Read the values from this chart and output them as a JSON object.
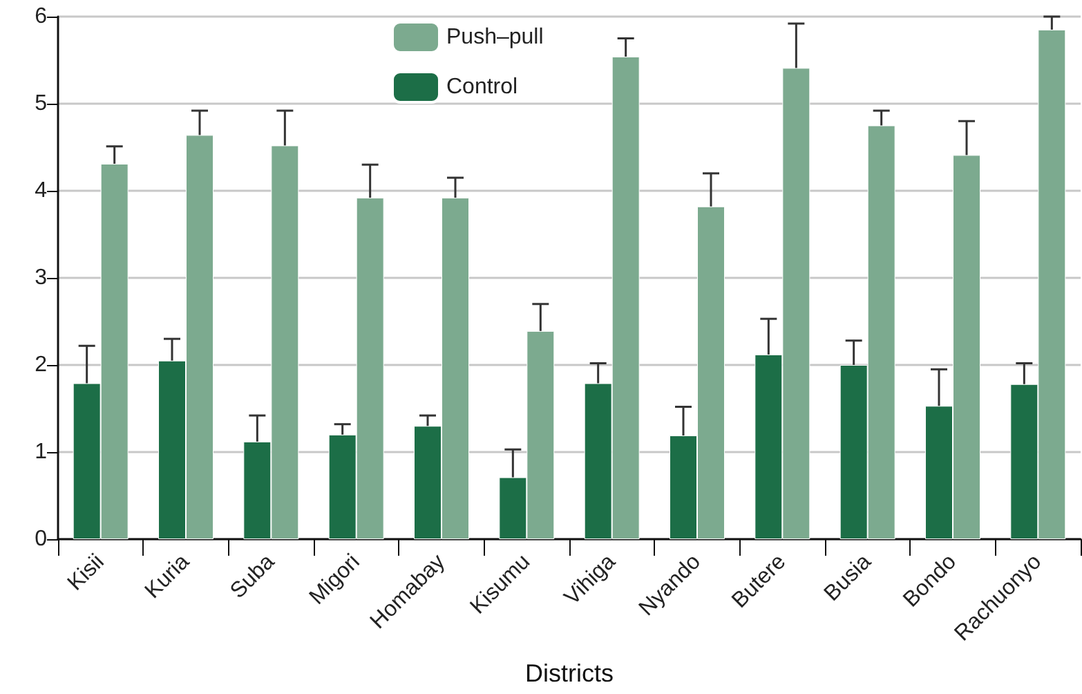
{
  "chart_data": {
    "type": "bar",
    "xlabel": "Districts",
    "categories": [
      "Kisii",
      "Kuria",
      "Suba",
      "Migori",
      "Homabay",
      "Kisumu",
      "Vihiga",
      "Nyando",
      "Butere",
      "Busia",
      "Bondo",
      "Rachuonyo"
    ],
    "series": [
      {
        "name": "Control",
        "color": "#1c6e47",
        "values": [
          1.79,
          2.05,
          1.12,
          1.2,
          1.3,
          0.71,
          1.79,
          1.19,
          2.12,
          2.0,
          1.53,
          1.78
        ],
        "errors": [
          0.43,
          0.25,
          0.3,
          0.12,
          0.12,
          0.32,
          0.23,
          0.33,
          0.41,
          0.28,
          0.42,
          0.24
        ]
      },
      {
        "name": "Push–pull",
        "color": "#7caa8f",
        "values": [
          4.31,
          4.64,
          4.52,
          3.92,
          3.92,
          2.39,
          5.54,
          3.82,
          5.41,
          4.75,
          4.41,
          5.85
        ],
        "errors": [
          0.2,
          0.28,
          0.4,
          0.38,
          0.23,
          0.31,
          0.21,
          0.38,
          0.51,
          0.17,
          0.39,
          0.15
        ]
      }
    ],
    "ylim": [
      0,
      6
    ],
    "yticks": [
      0,
      1,
      2,
      3,
      4,
      5,
      6
    ],
    "grid": "y",
    "legend": "top"
  }
}
